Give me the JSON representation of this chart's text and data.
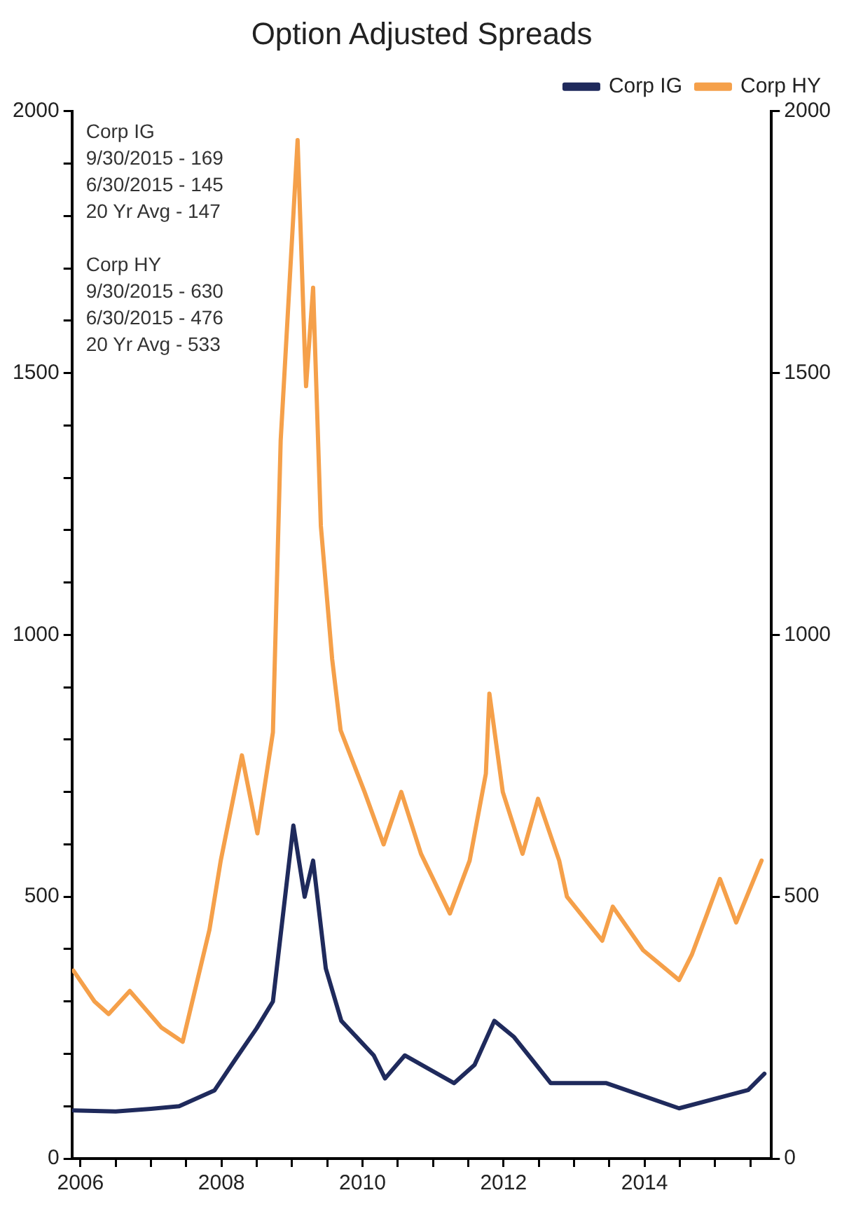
{
  "chart_data": {
    "type": "line",
    "title": "Option Adjusted Spreads",
    "xlim": [
      2005.88,
      2015.8
    ],
    "xticks": [
      2006,
      {
        "value": 2006.5,
        "label": null
      },
      {
        "value": 2007,
        "label": null
      },
      {
        "value": 2007.5,
        "label": null
      },
      2008,
      {
        "value": 2008.5,
        "label": null
      },
      {
        "value": 2009,
        "label": null
      },
      {
        "value": 2009.5,
        "label": null
      },
      2010,
      {
        "value": 2010.5,
        "label": null
      },
      {
        "value": 2011,
        "label": null
      },
      {
        "value": 2011.5,
        "label": null
      },
      2012,
      {
        "value": 2012.5,
        "label": null
      },
      {
        "value": 2013,
        "label": null
      },
      {
        "value": 2013.5,
        "label": null
      },
      2014,
      {
        "value": 2014.5,
        "label": null
      },
      {
        "value": 2015,
        "label": null
      },
      {
        "value": 2015.5,
        "label": null
      }
    ],
    "ylim": [
      0,
      2000
    ],
    "yticks": [
      0,
      {
        "value": 100,
        "label": null
      },
      {
        "value": 200,
        "label": null
      },
      {
        "value": 300,
        "label": null
      },
      {
        "value": 400,
        "label": null
      },
      500,
      {
        "value": 600,
        "label": null
      },
      {
        "value": 700,
        "label": null
      },
      {
        "value": 800,
        "label": null
      },
      {
        "value": 900,
        "label": null
      },
      1000,
      {
        "value": 1100,
        "label": null
      },
      {
        "value": 1200,
        "label": null
      },
      {
        "value": 1300,
        "label": null
      },
      {
        "value": 1400,
        "label": null
      },
      1500,
      {
        "value": 1600,
        "label": null
      },
      {
        "value": 1700,
        "label": null
      },
      {
        "value": 1800,
        "label": null
      },
      {
        "value": 1900,
        "label": null
      },
      2000
    ],
    "y2lim": [
      0,
      2000
    ],
    "y2ticks": [
      0,
      500,
      1000,
      1500,
      2000
    ],
    "grid": false,
    "legend": "top right",
    "marker": "none",
    "line_style": "solid",
    "annotations": [
      "Corp IG",
      "9/30/2015 - 169",
      "6/30/2015 - 145",
      "20 Yr Avg - 147",
      "Corp HY",
      "9/30/2015 - 630",
      "6/30/2015 - 476",
      "20 Yr Avg - 533"
    ],
    "series": [
      {
        "name": "Corp IG",
        "color": "#1f2a5c",
        "x": [
          2005.9,
          2006.5,
          2007.0,
          2007.4,
          2007.7,
          2007.9,
          2008.2,
          2008.5,
          2008.73,
          2009.02,
          2009.18,
          2009.3,
          2009.48,
          2009.7,
          2010.16,
          2010.32,
          2010.6,
          2011.3,
          2011.59,
          2011.87,
          2012.15,
          2012.67,
          2013.46,
          2014.49,
          2015.47,
          2015.7
        ],
        "values": [
          92,
          90,
          95,
          100,
          118,
          130,
          190,
          249,
          300,
          636,
          500,
          569,
          363,
          263,
          197,
          153,
          197,
          144,
          179,
          263,
          232,
          144,
          144,
          96,
          131,
          162
        ]
      },
      {
        "name": "Corp HY",
        "color": "#f5a04a",
        "x": [
          2005.9,
          2006.2,
          2006.4,
          2006.7,
          2007.15,
          2007.45,
          2007.83,
          2007.99,
          2008.29,
          2008.51,
          2008.73,
          2008.84,
          2009.08,
          2009.18,
          2009.2,
          2009.3,
          2009.41,
          2009.57,
          2009.69,
          2010.03,
          2010.3,
          2010.55,
          2010.83,
          2011.24,
          2011.52,
          2011.75,
          2011.8,
          2011.99,
          2012.27,
          2012.49,
          2012.79,
          2012.9,
          2013.4,
          2013.55,
          2013.98,
          2014.49,
          2014.67,
          2014.89,
          2015.07,
          2015.3,
          2015.66
        ],
        "values": [
          359,
          300,
          276,
          320,
          250,
          223,
          437,
          569,
          770,
          621,
          814,
          1371,
          1945,
          1545,
          1475,
          1663,
          1208,
          954,
          818,
          700,
          600,
          700,
          582,
          468,
          569,
          735,
          888,
          700,
          582,
          687,
          569,
          500,
          416,
          481,
          398,
          341,
          389,
          468,
          534,
          451,
          569
        ]
      }
    ]
  }
}
